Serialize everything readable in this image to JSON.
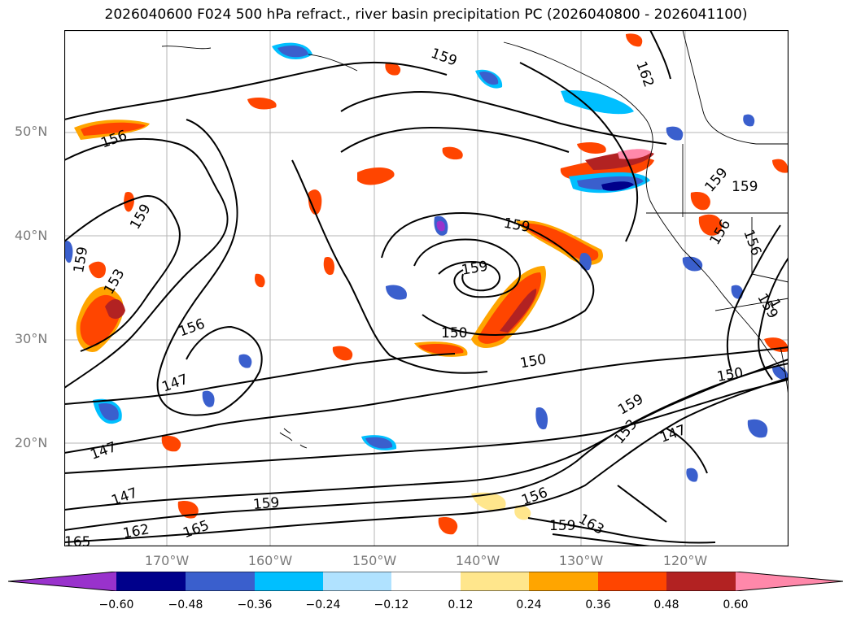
{
  "title": "2026040600 F024 500 hPa refract., river basin precipitation PC (2026040800 - 2026041100)",
  "lat_labels": [
    "50°N",
    "40°N",
    "30°N",
    "20°N"
  ],
  "lon_labels": [
    "170°W",
    "160°W",
    "150°W",
    "140°W",
    "130°W",
    "120°W"
  ],
  "contour_labels": [
    "159",
    "162",
    "156",
    "159",
    "159",
    "153",
    "156",
    "159",
    "159",
    "150",
    "150",
    "150",
    "147",
    "147",
    "159",
    "153",
    "147",
    "159",
    "156",
    "147",
    "162",
    "165",
    "165",
    "159",
    "163",
    "159",
    "159",
    "156",
    "156",
    "159",
    "1"
  ],
  "colorbar": {
    "tick_labels": [
      "−0.60",
      "−0.48",
      "−0.36",
      "−0.24",
      "−0.12",
      "0.12",
      "0.24",
      "0.36",
      "0.48",
      "0.60"
    ],
    "colors": [
      "#9932cc",
      "#00008b",
      "#3a5fcd",
      "#00bfff",
      "#b0e2ff",
      "#ffffff",
      "#ffe68c",
      "#ffa500",
      "#ff4500",
      "#b22222",
      "#ff88aa"
    ]
  }
}
